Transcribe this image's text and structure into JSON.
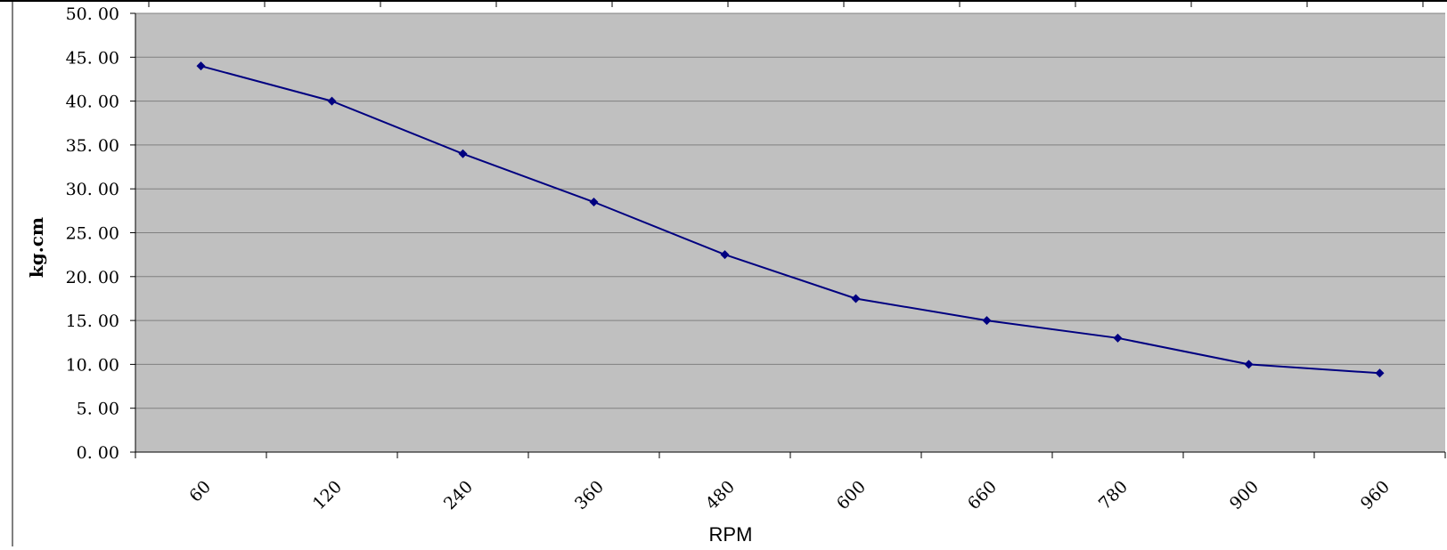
{
  "chart_data": {
    "type": "line",
    "xlabel": "RPM",
    "ylabel": "kg.cm",
    "categories": [
      "60",
      "120",
      "240",
      "360",
      "480",
      "600",
      "660",
      "780",
      "900",
      "960"
    ],
    "series": [
      {
        "values": [
          44.0,
          40.0,
          34.0,
          28.5,
          22.5,
          17.5,
          15.0,
          13.0,
          10.0,
          9.0
        ]
      }
    ],
    "ylim": [
      0,
      50
    ],
    "y_ticks": [
      "0. 00",
      "5. 00",
      "10. 00",
      "15. 00",
      "20. 00",
      "25. 00",
      "30. 00",
      "35. 00",
      "40. 00",
      "45. 00",
      "50. 00"
    ],
    "grid": "horizontal",
    "legend": "none",
    "colors": {
      "plot_background": "#c0c0c0",
      "gridline": "#808080",
      "series_line": "#000080",
      "series_marker": "#000080"
    }
  }
}
